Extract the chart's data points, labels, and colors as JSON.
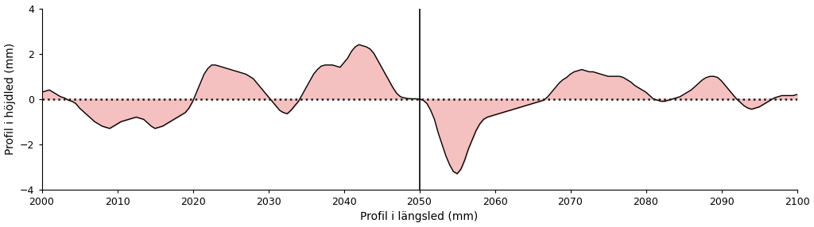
{
  "xlabel": "Profil i längsled (mm)",
  "ylabel": "Profil i höjdled (mm)",
  "xlim": [
    2000,
    2100
  ],
  "ylim": [
    -4,
    4
  ],
  "yticks": [
    -4,
    -2,
    0,
    2,
    4
  ],
  "xticks": [
    2000,
    2010,
    2020,
    2030,
    2040,
    2050,
    2060,
    2070,
    2080,
    2090,
    2100
  ],
  "vline_x": 2050,
  "fill_color": "#f5c0c0",
  "line_color": "#000000",
  "dotted_color": "#1a1a1a",
  "background_color": "#ffffff",
  "x": [
    2000,
    2000.5,
    2001,
    2001.5,
    2002,
    2002.5,
    2003,
    2003.5,
    2004,
    2004.5,
    2005,
    2005.5,
    2006,
    2006.5,
    2007,
    2007.5,
    2008,
    2008.5,
    2009,
    2009.5,
    2010,
    2010.5,
    2011,
    2011.5,
    2012,
    2012.5,
    2013,
    2013.5,
    2014,
    2014.5,
    2015,
    2015.5,
    2016,
    2016.5,
    2017,
    2017.5,
    2018,
    2018.5,
    2019,
    2019.5,
    2020,
    2020.5,
    2021,
    2021.5,
    2022,
    2022.5,
    2023,
    2023.5,
    2024,
    2024.5,
    2025,
    2025.5,
    2026,
    2026.5,
    2027,
    2027.5,
    2028,
    2028.5,
    2029,
    2029.5,
    2030,
    2030.5,
    2031,
    2031.5,
    2032,
    2032.5,
    2033,
    2033.5,
    2034,
    2034.5,
    2035,
    2035.5,
    2036,
    2036.5,
    2037,
    2037.5,
    2038,
    2038.5,
    2039,
    2039.5,
    2040,
    2040.5,
    2041,
    2041.5,
    2042,
    2042.5,
    2043,
    2043.5,
    2044,
    2044.5,
    2045,
    2045.5,
    2046,
    2046.5,
    2047,
    2047.5,
    2048,
    2048.5,
    2049,
    2049.5,
    2050,
    2050.5,
    2051,
    2051.5,
    2052,
    2052.5,
    2053,
    2053.5,
    2054,
    2054.5,
    2055,
    2055.5,
    2056,
    2056.5,
    2057,
    2057.5,
    2058,
    2058.5,
    2059,
    2059.5,
    2060,
    2060.5,
    2061,
    2061.5,
    2062,
    2062.5,
    2063,
    2063.5,
    2064,
    2064.5,
    2065,
    2065.5,
    2066,
    2066.5,
    2067,
    2067.5,
    2068,
    2068.5,
    2069,
    2069.5,
    2070,
    2070.5,
    2071,
    2071.5,
    2072,
    2072.5,
    2073,
    2073.5,
    2074,
    2074.5,
    2075,
    2075.5,
    2076,
    2076.5,
    2077,
    2077.5,
    2078,
    2078.5,
    2079,
    2079.5,
    2080,
    2080.5,
    2081,
    2081.5,
    2082,
    2082.5,
    2083,
    2083.5,
    2084,
    2084.5,
    2085,
    2085.5,
    2086,
    2086.5,
    2087,
    2087.5,
    2088,
    2088.5,
    2089,
    2089.5,
    2090,
    2090.5,
    2091,
    2091.5,
    2092,
    2092.5,
    2093,
    2093.5,
    2094,
    2094.5,
    2095,
    2095.5,
    2096,
    2096.5,
    2097,
    2097.5,
    2098,
    2098.5,
    2099,
    2099.5,
    2100
  ],
  "y": [
    0.3,
    0.35,
    0.4,
    0.3,
    0.2,
    0.1,
    0.05,
    -0.05,
    -0.1,
    -0.2,
    -0.4,
    -0.55,
    -0.7,
    -0.85,
    -1.0,
    -1.1,
    -1.2,
    -1.25,
    -1.3,
    -1.2,
    -1.1,
    -1.0,
    -0.95,
    -0.9,
    -0.85,
    -0.8,
    -0.85,
    -0.9,
    -1.05,
    -1.2,
    -1.3,
    -1.25,
    -1.2,
    -1.1,
    -1.0,
    -0.9,
    -0.8,
    -0.7,
    -0.6,
    -0.4,
    -0.1,
    0.3,
    0.7,
    1.1,
    1.35,
    1.5,
    1.5,
    1.45,
    1.4,
    1.35,
    1.3,
    1.25,
    1.2,
    1.15,
    1.1,
    1.0,
    0.9,
    0.7,
    0.5,
    0.3,
    0.1,
    -0.1,
    -0.3,
    -0.5,
    -0.6,
    -0.65,
    -0.5,
    -0.3,
    -0.1,
    0.2,
    0.5,
    0.8,
    1.1,
    1.3,
    1.45,
    1.5,
    1.5,
    1.5,
    1.45,
    1.4,
    1.6,
    1.8,
    2.1,
    2.3,
    2.4,
    2.35,
    2.3,
    2.2,
    2.0,
    1.7,
    1.4,
    1.1,
    0.8,
    0.5,
    0.25,
    0.1,
    0.05,
    0.02,
    0.01,
    0.01,
    0.0,
    -0.05,
    -0.2,
    -0.5,
    -0.9,
    -1.5,
    -2.0,
    -2.5,
    -2.9,
    -3.2,
    -3.3,
    -3.1,
    -2.7,
    -2.2,
    -1.8,
    -1.4,
    -1.1,
    -0.9,
    -0.8,
    -0.75,
    -0.7,
    -0.65,
    -0.6,
    -0.55,
    -0.5,
    -0.45,
    -0.4,
    -0.35,
    -0.3,
    -0.25,
    -0.2,
    -0.15,
    -0.1,
    -0.05,
    0.1,
    0.3,
    0.5,
    0.7,
    0.85,
    0.95,
    1.1,
    1.2,
    1.25,
    1.3,
    1.25,
    1.2,
    1.2,
    1.15,
    1.1,
    1.05,
    1.0,
    1.0,
    1.0,
    1.0,
    0.95,
    0.85,
    0.75,
    0.6,
    0.5,
    0.4,
    0.3,
    0.15,
    0.0,
    -0.05,
    -0.1,
    -0.1,
    -0.05,
    0.0,
    0.05,
    0.1,
    0.2,
    0.3,
    0.4,
    0.55,
    0.7,
    0.85,
    0.95,
    1.0,
    1.0,
    0.95,
    0.8,
    0.6,
    0.4,
    0.2,
    0.0,
    -0.15,
    -0.3,
    -0.4,
    -0.45,
    -0.4,
    -0.35,
    -0.25,
    -0.15,
    -0.05,
    0.05,
    0.1,
    0.15,
    0.15,
    0.15,
    0.15,
    0.2
  ]
}
